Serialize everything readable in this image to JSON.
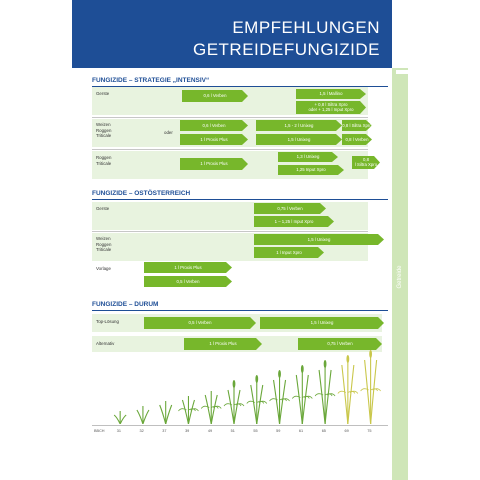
{
  "header": {
    "line1": "EMPFEHLUNGEN",
    "line2": "GETREIDEFUNGIZIDE"
  },
  "sidebar": {
    "label": "Getreide"
  },
  "sections": [
    {
      "title": "FUNGIZIDE – STRATEGIE „INTENSIV“",
      "rows": [
        {
          "label": "Gerste",
          "arrows": [
            "0,6 l Verben",
            "1,5 l Mallino",
            "+ 0,8 l Siltra Xpro\noder + 1,25 l Input Xpro"
          ]
        },
        {
          "label": "Weizen\nRoggen\nTriticale",
          "oder": "oder",
          "arrows": [
            "0,6 l Verben",
            "1,5 - 2 l Unixeg",
            "0,8 l Siltra Xpro",
            "1 l Proxis Plus",
            "1,5 l Unixeg",
            "0,8 l Verben"
          ]
        },
        {
          "label": "Roggen\nTriticale",
          "arrows": [
            "1 l Proxis Plus",
            "1,3 l Unixeg",
            "0,8\nl Siltra Xpro",
            "1,25 Input Xpro"
          ]
        }
      ]
    },
    {
      "title": "FUNGIZIDE – OSTÖSTERREICH",
      "rows": [
        {
          "label": "Gerste",
          "arrows": [
            "0,75 l Verben",
            "1 – 1,25 l Input Xpro"
          ]
        },
        {
          "label": "Weizen\nRoggen\nTriticale",
          "arrows": [
            "1,5 l Unixeg",
            "1 l Input Xpro"
          ]
        },
        {
          "label": "Vorlage",
          "arrows": [
            "1 l Proxis Plus",
            "0,5 l Verben"
          ]
        }
      ]
    },
    {
      "title": "FUNGIZIDE – DURUM",
      "rows": [
        {
          "label": "Top-Lösung",
          "arrows": [
            "0,5 l Verben",
            "1,5 l Unixeg"
          ]
        },
        {
          "label": "Alternativ",
          "arrows": [
            "1 l Proxis Plus",
            "0,75 l Verben"
          ]
        }
      ]
    }
  ],
  "growth_stages": [
    "BBCH",
    "31",
    "32",
    "37",
    "39",
    "49",
    "51",
    "55",
    "59",
    "61",
    "65",
    "69",
    "75"
  ],
  "colors": {
    "header": "#1e4e96",
    "arrow": "#77b72b",
    "row_bg": "#e8f3df",
    "sidebar": "#cfe6b8"
  }
}
